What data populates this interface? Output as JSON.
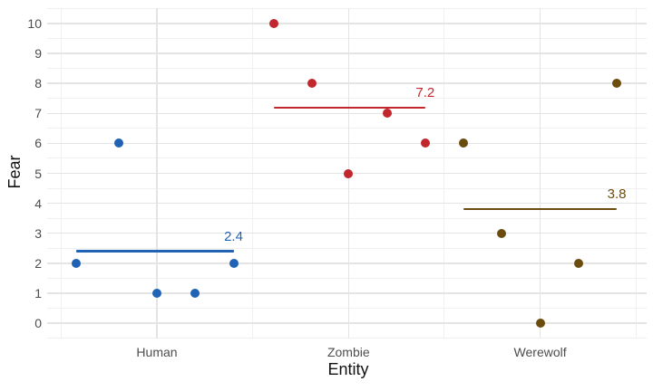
{
  "chart_data": {
    "type": "scatter",
    "title": "",
    "xlabel": "Entity",
    "ylabel": "Fear",
    "categories": [
      "Human",
      "Zombie",
      "Werewolf"
    ],
    "y_ticks": [
      0,
      1,
      2,
      3,
      4,
      5,
      6,
      7,
      8,
      9,
      10
    ],
    "ylim": [
      -0.5,
      10.5
    ],
    "grid": "major+minor",
    "legend": "none",
    "background": "#ffffff",
    "grid_major_color": "#e4e4e4",
    "grid_minor_color": "#f0f0f0",
    "tick_label_color": "#4d4d4d",
    "axis_title_color": "#111111",
    "series": [
      {
        "name": "Human",
        "color": "#2062b4",
        "values": [
          2,
          6,
          1,
          1,
          2
        ],
        "points": [
          {
            "offset": -0.42,
            "value": 2
          },
          {
            "offset": -0.2,
            "value": 6
          },
          {
            "offset": 0.0,
            "value": 1
          },
          {
            "offset": 0.2,
            "value": 1
          },
          {
            "offset": 0.4,
            "value": 2
          }
        ],
        "mean": 2.4,
        "mean_label": "2.4"
      },
      {
        "name": "Zombie",
        "color": "#c1272d",
        "values": [
          10,
          8,
          5,
          7,
          6
        ],
        "points": [
          {
            "offset": -0.39,
            "value": 10
          },
          {
            "offset": -0.19,
            "value": 8
          },
          {
            "offset": 0.0,
            "value": 5
          },
          {
            "offset": 0.2,
            "value": 7
          },
          {
            "offset": 0.4,
            "value": 6
          }
        ],
        "mean": 7.2,
        "mean_label": "7.2"
      },
      {
        "name": "Werewolf",
        "color": "#6b4c0e",
        "values": [
          6,
          3,
          0,
          2,
          8
        ],
        "points": [
          {
            "offset": -0.4,
            "value": 6
          },
          {
            "offset": -0.2,
            "value": 3
          },
          {
            "offset": 0.0,
            "value": 0
          },
          {
            "offset": 0.2,
            "value": 2
          },
          {
            "offset": 0.4,
            "value": 8
          }
        ],
        "mean": 3.8,
        "mean_label": "3.8"
      }
    ]
  }
}
